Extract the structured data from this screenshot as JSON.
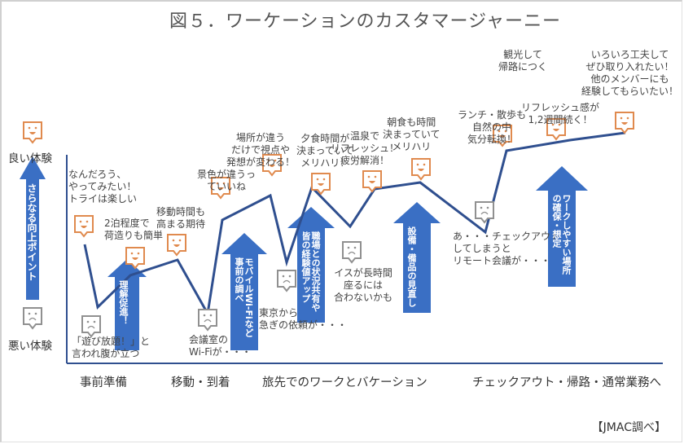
{
  "title": "図５．ワーケーションのカスタマージャーニー",
  "y_axis": {
    "top_label": "良い体験",
    "bottom_label": "悪い体験",
    "improvement_arrow_label": "さらなる向上ポイント"
  },
  "phases": [
    "事前準備",
    "移動・到着",
    "旅先でのワークとバケーション",
    "チェックアウト・帰路・通常業務へ"
  ],
  "source": "【JMAC調べ】",
  "colors": {
    "line": "#2F4F8F",
    "arrow": "#3A6FC4",
    "good_icon": "#E08A4E",
    "bad_icon": "#909090",
    "axis": "#2F4F8F"
  },
  "touchpoints": [
    {
      "caption": "なんだろう、\nやってみたい！\nトライは楽しい",
      "sentiment": "good",
      "level": 0.63
    },
    {
      "caption": "「遊び放題！」と\n言われ腹が立つ",
      "sentiment": "bad",
      "level": 0.25
    },
    {
      "caption": "2泊程度で\n荷造りも簡単",
      "sentiment": "good",
      "level": 0.38
    },
    {
      "caption": "移動時間も\n高まる期待",
      "sentiment": "good",
      "level": 0.44
    },
    {
      "caption": "会議室の\nWi-Fiが・・・",
      "sentiment": "bad",
      "level": 0.13
    },
    {
      "caption": "景色が違うっ\nていいね",
      "sentiment": "good",
      "level": 0.66
    },
    {
      "caption": "場所が違う\nだけで視点や\n発想が変わる！",
      "sentiment": "good",
      "level": 0.76
    },
    {
      "caption": "東京から\n急ぎの依頼が・・・",
      "sentiment": "bad",
      "level": 0.33
    },
    {
      "caption": "夕食時間が\n決まっていて\nメリハリ！",
      "sentiment": "good",
      "level": 0.77
    },
    {
      "caption": "イスが長時間\n座るには\n合わないかも",
      "sentiment": "bad",
      "level": 0.6
    },
    {
      "caption": "温泉で\nリフレッシュ！\n疲労解消！",
      "sentiment": "good",
      "level": 0.8
    },
    {
      "caption": "朝食も時間\n決まっていて\nメリハリ",
      "sentiment": "good",
      "level": 0.83
    },
    {
      "caption": "あ・・・チェックアウト\nしてしまうと\nリモート会議が・・・",
      "sentiment": "bad",
      "level": 0.59
    },
    {
      "caption": "ランチ・散歩も\n自然の中\n気分転換！",
      "sentiment": "good",
      "level": 0.98
    },
    {
      "caption": "リフレッシュ感が\n1,2週間続く！",
      "sentiment": "good",
      "level": 1.03
    },
    {
      "caption": "観光して\n帰路につく",
      "sentiment": "good",
      "level": 1.05
    },
    {
      "caption": "いろいろ工夫して\nぜひ取り入れたい！\n他のメンバーにも\n経験してもらいたい！",
      "sentiment": "good",
      "level": 1.08
    }
  ],
  "improvement_points": [
    {
      "label": "理解促進！"
    },
    {
      "label": "モバイルWi-Fiなど\n事前の調べ"
    },
    {
      "label": "職場との状況共有や\n皆の経験値アップ"
    },
    {
      "label": "設備・備品の見直し"
    },
    {
      "label": "ワークしやすい場所\nの確保・想定"
    }
  ]
}
